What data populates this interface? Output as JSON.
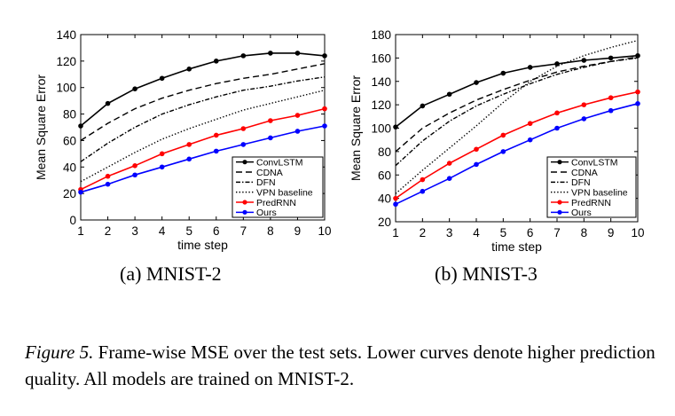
{
  "figure": {
    "subcaptions": [
      "(a) MNIST-2",
      "(b) MNIST-3"
    ],
    "caption_label": "Figure 5.",
    "caption_text": "Frame-wise MSE over the test sets. Lower curves denote higher prediction quality. All models are trained on MNIST-2."
  },
  "chart_data": [
    {
      "type": "line",
      "title": "(a) MNIST-2",
      "xlabel": "time step",
      "ylabel": "Mean Square Error",
      "x": [
        1,
        2,
        3,
        4,
        5,
        6,
        7,
        8,
        9,
        10
      ],
      "xlim": [
        1,
        10
      ],
      "ylim": [
        0,
        140
      ],
      "yticks": [
        0,
        20,
        40,
        60,
        80,
        100,
        120,
        140
      ],
      "legend_position": "bottom-right",
      "series": [
        {
          "name": "ConvLSTM",
          "style": "solid-marker",
          "color": "#000000",
          "values": [
            71,
            88,
            99,
            107,
            114,
            120,
            124,
            126,
            126,
            124
          ]
        },
        {
          "name": "CDNA",
          "style": "dashed",
          "color": "#000000",
          "values": [
            60,
            73,
            84,
            92,
            98,
            103,
            107,
            110,
            114,
            118
          ]
        },
        {
          "name": "DFN",
          "style": "dashdot",
          "color": "#000000",
          "values": [
            44,
            58,
            70,
            80,
            87,
            93,
            98,
            101,
            105,
            108
          ]
        },
        {
          "name": "VPN baseline",
          "style": "dotted",
          "color": "#000000",
          "values": [
            29,
            40,
            51,
            61,
            69,
            76,
            83,
            88,
            93,
            98
          ]
        },
        {
          "name": "PredRNN",
          "style": "solid-marker",
          "color": "#ff0000",
          "values": [
            23,
            33,
            41,
            50,
            57,
            64,
            69,
            75,
            79,
            84
          ]
        },
        {
          "name": "Ours",
          "style": "solid-marker",
          "color": "#0000ff",
          "values": [
            21,
            27,
            34,
            40,
            46,
            52,
            57,
            62,
            67,
            71
          ]
        }
      ]
    },
    {
      "type": "line",
      "title": "(b) MNIST-3",
      "xlabel": "time step",
      "ylabel": "Mean Square Error",
      "x": [
        1,
        2,
        3,
        4,
        5,
        6,
        7,
        8,
        9,
        10
      ],
      "xlim": [
        1,
        10
      ],
      "ylim": [
        20,
        180
      ],
      "yticks": [
        20,
        40,
        60,
        80,
        100,
        120,
        140,
        160,
        180
      ],
      "legend_position": "bottom-right",
      "series": [
        {
          "name": "ConvLSTM",
          "style": "solid-marker",
          "color": "#000000",
          "values": [
            101,
            119,
            129,
            139,
            147,
            152,
            155,
            158,
            160,
            162
          ]
        },
        {
          "name": "CDNA",
          "style": "dashed",
          "color": "#000000",
          "values": [
            80,
            100,
            113,
            124,
            133,
            141,
            148,
            153,
            157,
            161
          ]
        },
        {
          "name": "DFN",
          "style": "dashdot",
          "color": "#000000",
          "values": [
            68,
            89,
            106,
            119,
            129,
            138,
            146,
            152,
            157,
            160
          ]
        },
        {
          "name": "VPN baseline",
          "style": "dotted",
          "color": "#000000",
          "values": [
            44,
            64,
            83,
            102,
            122,
            140,
            153,
            162,
            169,
            175
          ]
        },
        {
          "name": "PredRNN",
          "style": "solid-marker",
          "color": "#ff0000",
          "values": [
            40,
            56,
            70,
            82,
            94,
            104,
            113,
            120,
            126,
            131
          ]
        },
        {
          "name": "Ours",
          "style": "solid-marker",
          "color": "#0000ff",
          "values": [
            35,
            46,
            57,
            69,
            80,
            90,
            100,
            108,
            115,
            121
          ]
        }
      ]
    }
  ]
}
